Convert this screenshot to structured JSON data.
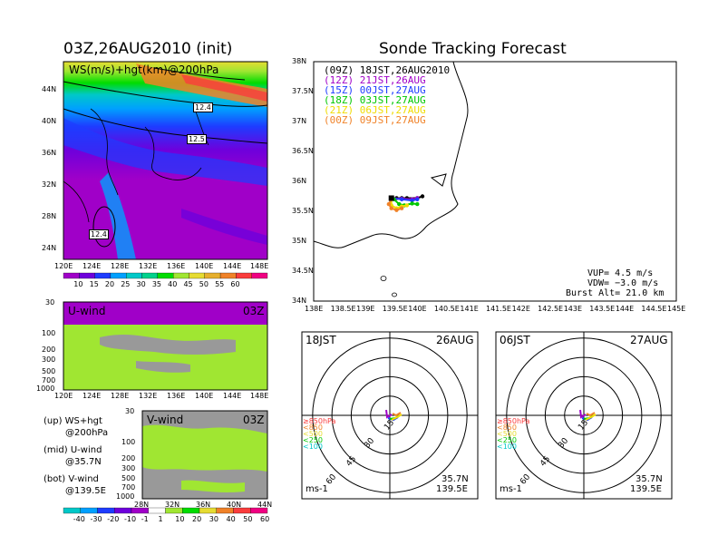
{
  "main_title": "Sonde Tracking Forecast",
  "init_title": "03Z,26AUG2010 (init)",
  "ws_panel": {
    "label": "WS(m/s)+hgt(km)@200hPa",
    "lat_ticks": [
      "44N",
      "40N",
      "36N",
      "32N",
      "28N",
      "24N"
    ],
    "lon_ticks": [
      "120E",
      "124E",
      "128E",
      "132E",
      "136E",
      "140E",
      "144E",
      "148E"
    ],
    "contour_labels": [
      "12.4",
      "12.5",
      "12.4"
    ],
    "colorbar_labels": [
      "10",
      "15",
      "20",
      "25",
      "30",
      "35",
      "40",
      "45",
      "50",
      "55",
      "60"
    ]
  },
  "colors": {
    "ws_bar": [
      "#a000c8",
      "#6e00dc",
      "#1e3cff",
      "#00a0ff",
      "#00c8c8",
      "#00d28c",
      "#00dc00",
      "#a0e632",
      "#e6dc32",
      "#e6af2d",
      "#f08228",
      "#fa3c3c",
      "#f00082"
    ],
    "uv_bar": [
      "#00c8c8",
      "#00a0ff",
      "#1e3cff",
      "#6e00dc",
      "#a000c8",
      "#ffffff",
      "#a0e632",
      "#00dc00",
      "#e6dc32",
      "#f08228",
      "#fa3c3c",
      "#f00082"
    ],
    "series": [
      "#000000",
      "#a000c8",
      "#1e3cff",
      "#00c800",
      "#f0dc00",
      "#f08228"
    ],
    "pressure_labels": [
      "#fa3c3c",
      "#f08228",
      "#e6dc32",
      "#00c800",
      "#00c8c8",
      "#1e3cff"
    ]
  },
  "u_panel": {
    "label": "U-wind",
    "time": "03Z",
    "p_ticks": [
      "30",
      "100",
      "200",
      "300",
      "500",
      "700",
      "1000"
    ],
    "lon_ticks": [
      "120E",
      "124E",
      "128E",
      "132E",
      "136E",
      "140E",
      "144E",
      "148E"
    ]
  },
  "v_panel": {
    "label": "V-wind",
    "time": "03Z",
    "p_ticks": [
      "30",
      "100",
      "200",
      "300",
      "500",
      "700",
      "1000"
    ],
    "lat_ticks": [
      "28N",
      "32N",
      "36N",
      "40N",
      "44N"
    ]
  },
  "legend_text": {
    "up": "(up) WS+hgt",
    "up2": "@200hPa",
    "mid": "(mid) U-wind",
    "mid2": "@35.7N",
    "bot": "(bot) V-wind",
    "bot2": "@139.5E"
  },
  "uv_colorbar_labels": [
    "-40",
    "-30",
    "-20",
    "-10",
    "-1",
    "1",
    "10",
    "20",
    "30",
    "40",
    "50",
    "60"
  ],
  "track_map": {
    "lat_ticks": [
      "38N",
      "37.5N",
      "37N",
      "36.5N",
      "36N",
      "35.5N",
      "35N",
      "34.5N",
      "34N"
    ],
    "lon_ticks": [
      "138E",
      "138.5E",
      "139E",
      "139.5E",
      "140E",
      "140.5E",
      "141E",
      "141.5E",
      "142E",
      "142.5E",
      "143E",
      "143.5E",
      "144E",
      "144.5E",
      "145E"
    ],
    "legend": [
      {
        "code": "(09Z)",
        "time": "18JST,26AUG2010"
      },
      {
        "code": "(12Z)",
        "time": "21JST,26AUG"
      },
      {
        "code": "(15Z)",
        "time": "00JST,27AUG"
      },
      {
        "code": "(18Z)",
        "time": "03JST,27AUG"
      },
      {
        "code": "(21Z)",
        "time": "06JST,27AUG"
      },
      {
        "code": "(00Z)",
        "time": "09JST,27AUG"
      }
    ],
    "vup": "VUP= 4.5 m/s",
    "vdw": "VDW= −3.0 m/s",
    "burst": "Burst Alt= 21.0 km"
  },
  "chart_data": [
    {
      "type": "line",
      "title": "Sonde Tracking Forecast",
      "xlim": [
        138,
        145
      ],
      "ylim": [
        34,
        38
      ],
      "series": [
        {
          "name": "(09Z) 18JST,26AUG2010",
          "x": [
            139.5,
            139.6,
            139.7,
            139.8,
            140.0,
            140.1
          ],
          "y": [
            35.72,
            35.72,
            35.72,
            35.72,
            35.72,
            35.75
          ]
        },
        {
          "name": "(12Z) 21JST,26AUG",
          "x": [
            139.5,
            139.7,
            139.9,
            140.0
          ],
          "y": [
            35.72,
            35.71,
            35.7,
            35.72
          ]
        },
        {
          "name": "(15Z) 00JST,27AUG",
          "x": [
            139.5,
            139.7,
            139.9,
            140.0
          ],
          "y": [
            35.72,
            35.7,
            35.68,
            35.7
          ]
        },
        {
          "name": "(18Z) 03JST,27AUG",
          "x": [
            139.55,
            139.65,
            139.75,
            139.9,
            140.0
          ],
          "y": [
            35.7,
            35.62,
            35.6,
            35.63,
            35.62
          ]
        },
        {
          "name": "(21Z) 06JST,27AUG",
          "x": [
            139.5,
            139.5,
            139.6,
            139.7,
            139.8
          ],
          "y": [
            35.7,
            35.6,
            35.55,
            35.58,
            35.6
          ]
        },
        {
          "name": "(00Z) 09JST,27AUG",
          "x": [
            139.5,
            139.45,
            139.5,
            139.6,
            139.7
          ],
          "y": [
            35.7,
            35.62,
            35.55,
            35.52,
            35.55
          ]
        }
      ]
    },
    {
      "type": "scatter",
      "title": "18JST 26AUG",
      "rings_ms": [
        15,
        30,
        45,
        60
      ],
      "location": {
        "lat": "35.7N",
        "lon": "139.5E"
      },
      "unit": "ms-1",
      "pressure_levels": [
        "≥850hPa",
        "<850",
        "<500",
        "<250",
        "<100"
      ]
    },
    {
      "type": "scatter",
      "title": "06JST 27AUG",
      "rings_ms": [
        15,
        30,
        45,
        60
      ],
      "location": {
        "lat": "35.7N",
        "lon": "139.5E"
      },
      "unit": "ms-1",
      "pressure_levels": [
        "≥850hPa",
        "<850",
        "<500",
        "<250",
        "<100"
      ]
    }
  ],
  "hodo_left": {
    "time": "18JST",
    "date": "26AUG",
    "lat": "35.7N",
    "lon": "139.5E",
    "unit": "ms-1",
    "rings": [
      "15",
      "30",
      "45",
      "60"
    ]
  },
  "hodo_right": {
    "time": "06JST",
    "date": "27AUG",
    "lat": "35.7N",
    "lon": "139.5E",
    "unit": "ms-1",
    "rings": [
      "15",
      "30",
      "45",
      "60"
    ]
  },
  "pressure_legend": [
    "≥850hPa",
    "<850",
    "<500",
    "<250",
    "<100"
  ]
}
